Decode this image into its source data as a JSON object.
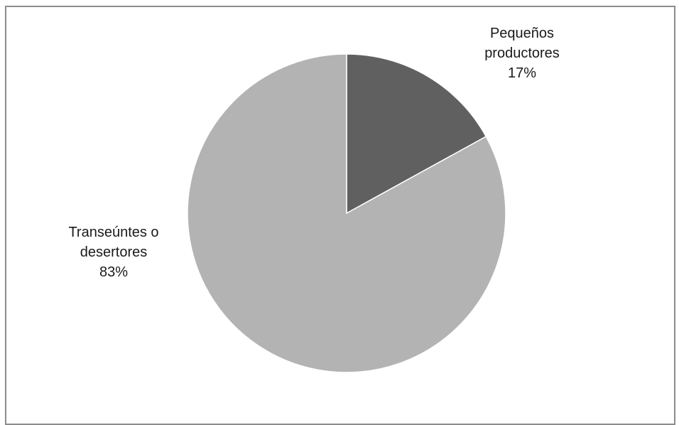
{
  "chart_data": {
    "type": "pie",
    "title": "",
    "slices": [
      {
        "label_lines": [
          "Pequeños",
          "productores"
        ],
        "percent_label": "17%",
        "value": 17,
        "color": "#606060"
      },
      {
        "label_lines": [
          "Transeúntes o",
          "desertores"
        ],
        "percent_label": "83%",
        "value": 83,
        "color": "#b3b3b3"
      }
    ],
    "start_angle": "12 o'clock",
    "direction": "clockwise",
    "legend": "none",
    "data_labels": "outside"
  },
  "colors": {
    "border": "#8c8c8c",
    "background": "#ffffff"
  }
}
